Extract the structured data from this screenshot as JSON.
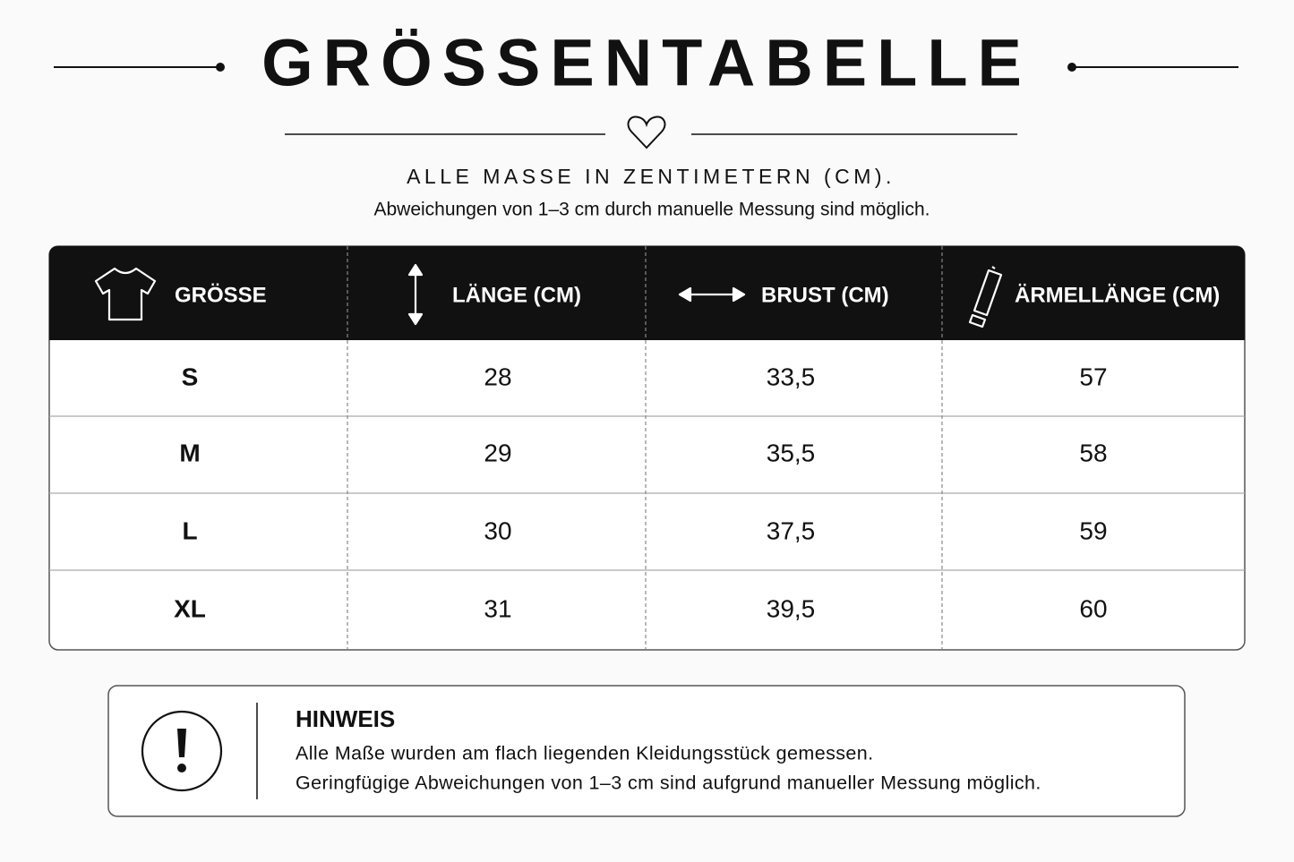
{
  "header": {
    "title": "GRÖSSENTABELLE",
    "subtitle": "ALLE MASSE IN ZENTIMETERN (CM).",
    "note": "Abweichungen von 1–3 cm durch manuelle Messung sind möglich."
  },
  "table": {
    "columns": [
      "GRÖSSE",
      "LÄNGE (CM)",
      "BRUST (CM)",
      "ÄRMELLÄNGE (CM)"
    ],
    "rows": [
      [
        "S",
        "28",
        "33,5",
        "57"
      ],
      [
        "M",
        "29",
        "35,5",
        "58"
      ],
      [
        "L",
        "30",
        "37,5",
        "59"
      ],
      [
        "XL",
        "31",
        "39,5",
        "60"
      ]
    ]
  },
  "hint": {
    "title": "HINWEIS",
    "lines": [
      "Alle Maße wurden am flach liegenden Kleidungsstück gemessen.",
      "Geringfügige Abweichungen von 1–3 cm sind aufgrund manueller Messung möglich."
    ]
  }
}
